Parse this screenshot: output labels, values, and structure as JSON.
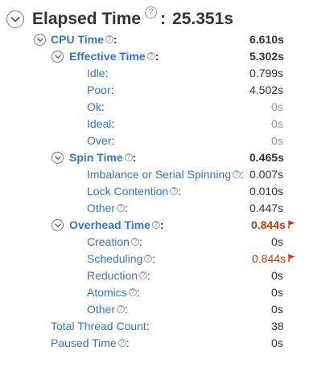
{
  "header": {
    "title": "Elapsed Time",
    "colon": ":",
    "value": "25.351s"
  },
  "rows": {
    "cpu": {
      "label": "CPU Time",
      "colon": ":",
      "value": "6.610s"
    },
    "effective": {
      "label": "Effective Time",
      "colon": ":",
      "value": "5.302s"
    },
    "idle": {
      "label": "Idle",
      "colon": ":",
      "value": "0.799s"
    },
    "poor": {
      "label": "Poor",
      "colon": ":",
      "value": "4.502s"
    },
    "ok": {
      "label": "Ok",
      "colon": ":",
      "value": "0s"
    },
    "ideal": {
      "label": "Ideal",
      "colon": ":",
      "value": "0s"
    },
    "over": {
      "label": "Over",
      "colon": ":",
      "value": "0s"
    },
    "spin": {
      "label": "Spin Time",
      "colon": ":",
      "value": "0.465s"
    },
    "imbalance": {
      "label": "Imbalance or Serial Spinning",
      "colon": ":",
      "value": "0.007s"
    },
    "lock": {
      "label": "Lock Contention",
      "colon": ":",
      "value": "0.010s"
    },
    "spin_other": {
      "label": "Other",
      "colon": ":",
      "value": "0.447s"
    },
    "overhead": {
      "label": "Overhead Time",
      "colon": ":",
      "value": "0.844s"
    },
    "creation": {
      "label": "Creation",
      "colon": ":",
      "value": "0s"
    },
    "scheduling": {
      "label": "Scheduling",
      "colon": ":",
      "value": "0.844s"
    },
    "reduction": {
      "label": "Reduction",
      "colon": ":",
      "value": "0s"
    },
    "atomics": {
      "label": "Atomics",
      "colon": ":",
      "value": "0s"
    },
    "overhead_other": {
      "label": "Other",
      "colon": ":",
      "value": "0s"
    },
    "thread_count": {
      "label": "Total Thread Count",
      "colon": ":",
      "value": "38"
    },
    "paused": {
      "label": "Paused Time",
      "colon": ":",
      "value": "0s"
    }
  },
  "help_glyph": "?",
  "colors": {
    "link": "#3a73c4",
    "warning": "#c23c0e",
    "muted": "#999999"
  },
  "icons": {
    "collapse": "chevron-down-circle-icon",
    "help": "help-icon",
    "flag": "flag-icon"
  }
}
